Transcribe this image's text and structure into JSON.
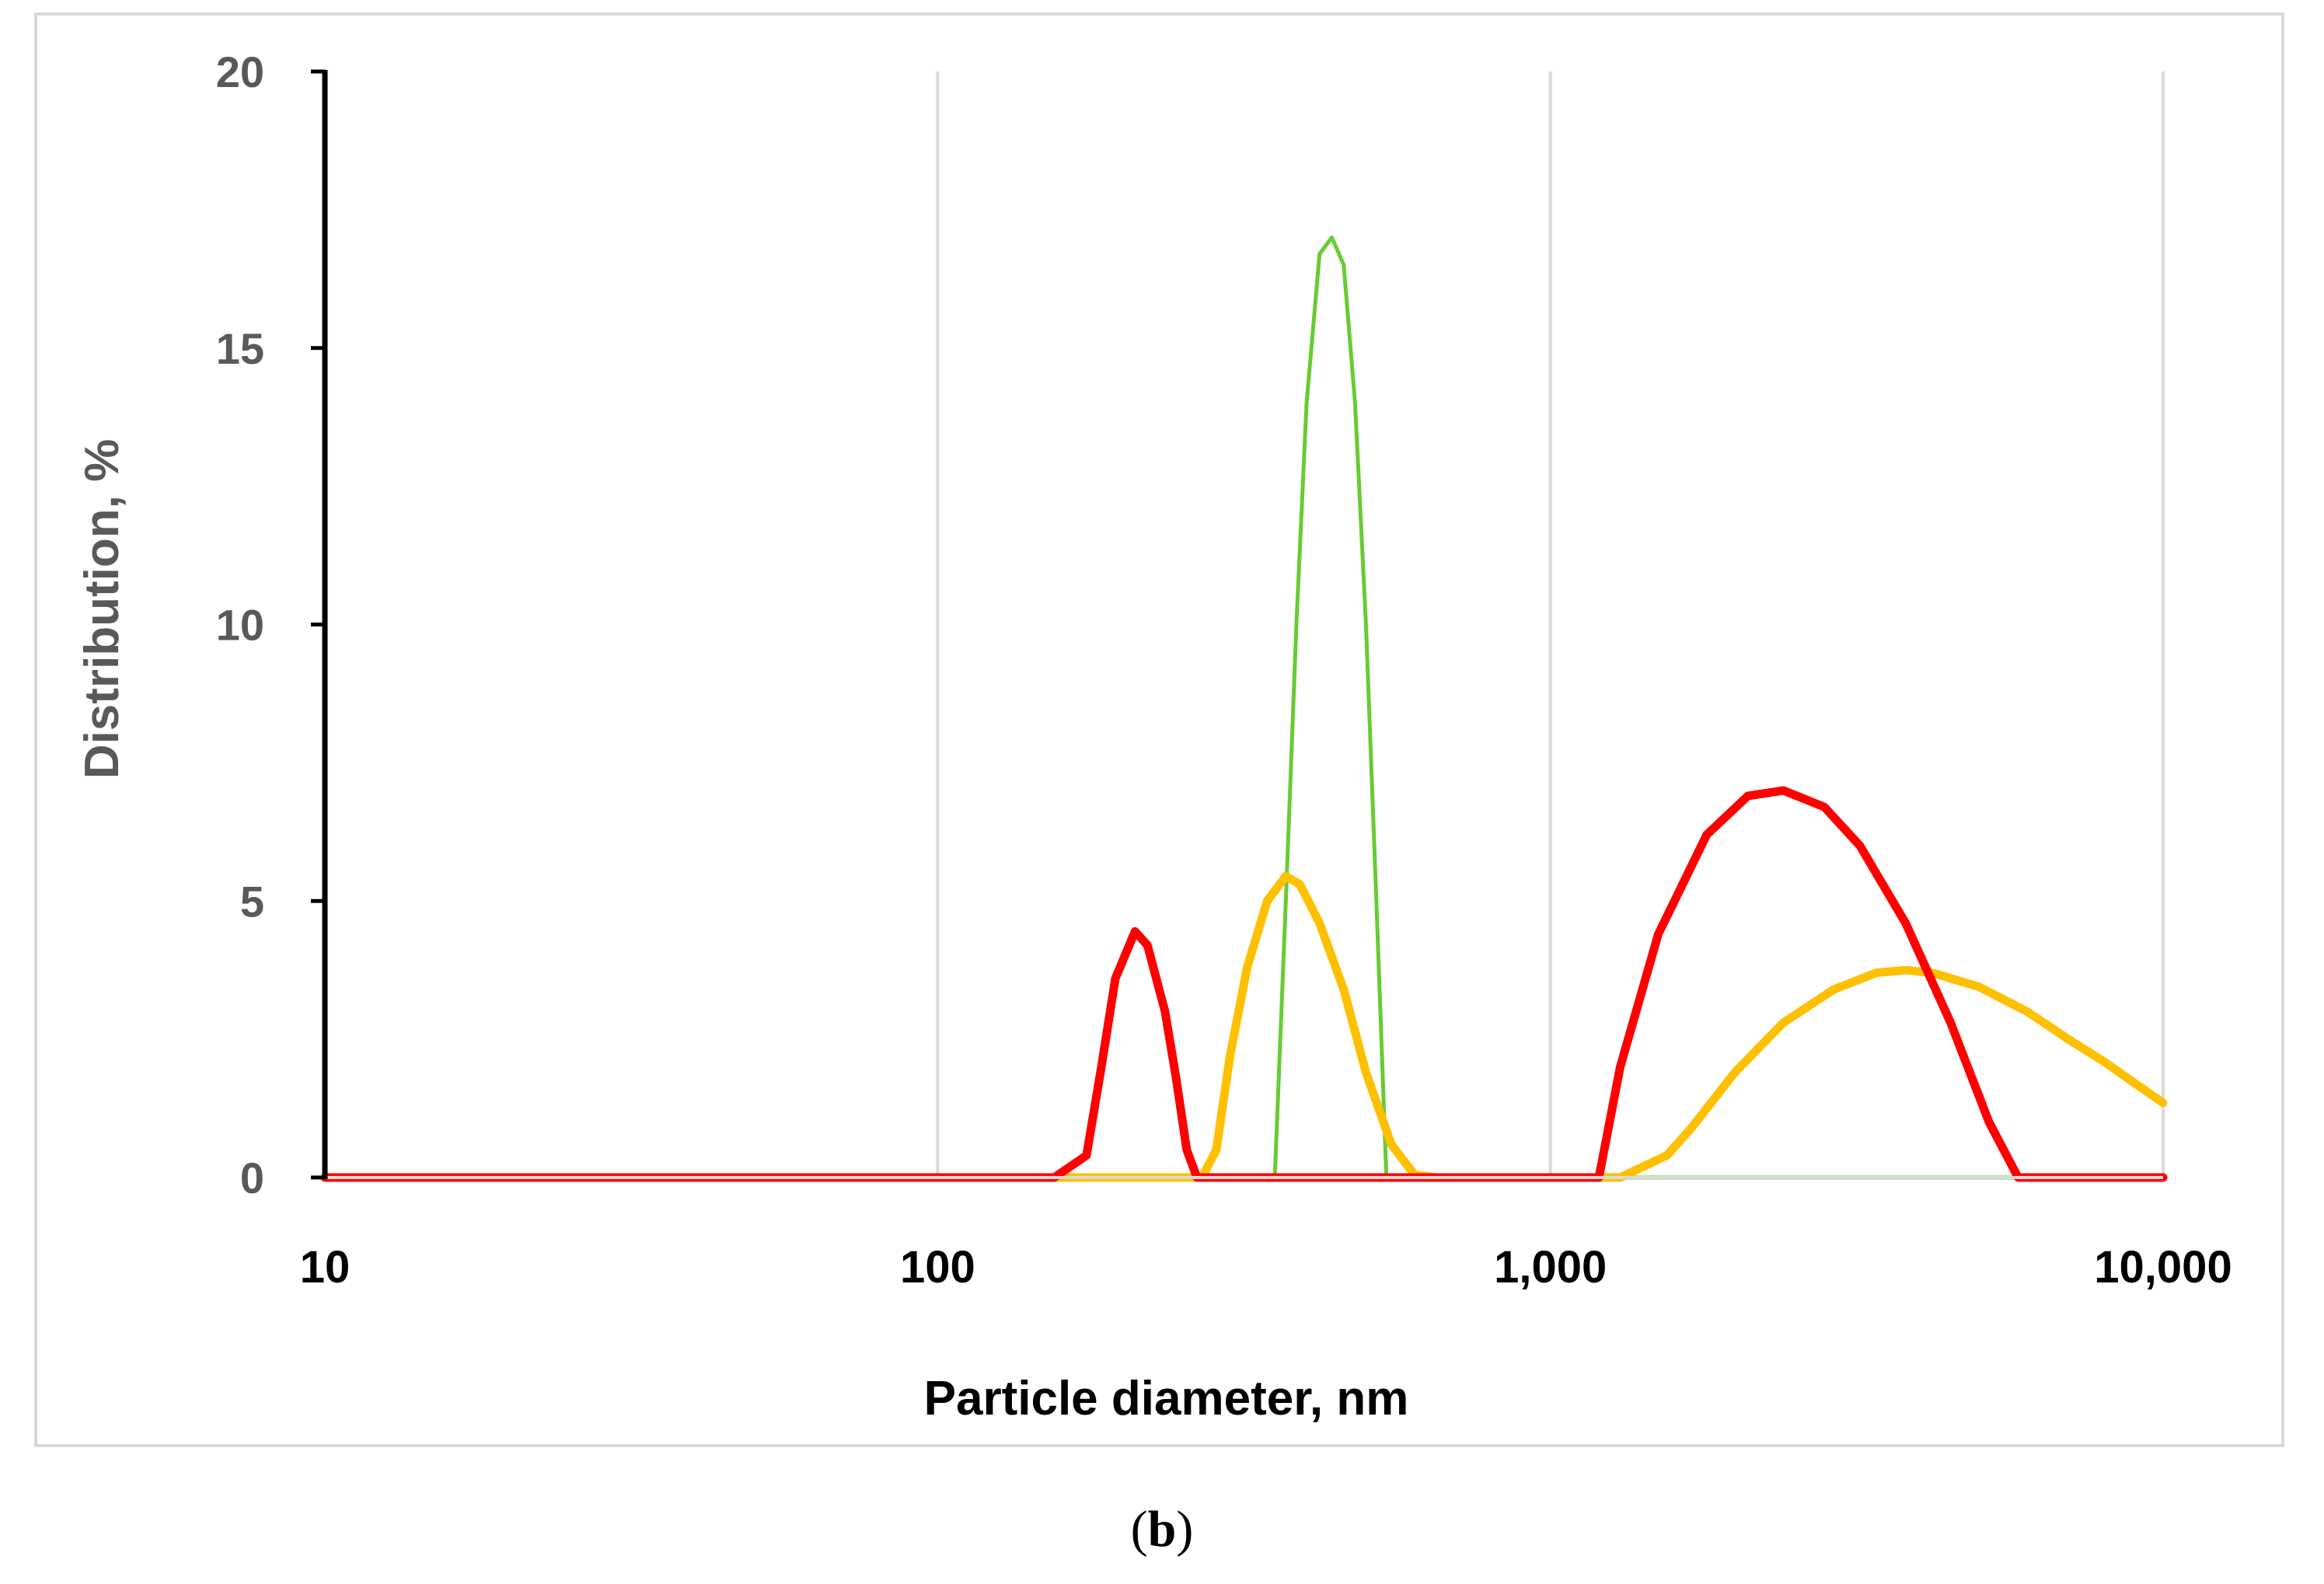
{
  "chart_data": {
    "type": "line",
    "xlabel": "Particle diameter, nm",
    "ylabel": "Distribution, %",
    "xscale": "log",
    "xlim": [
      10,
      10000
    ],
    "ylim": [
      0,
      20
    ],
    "x_ticks": [
      {
        "value": 10,
        "label": "10"
      },
      {
        "value": 100,
        "label": "100"
      },
      {
        "value": 1000,
        "label": "1,000"
      },
      {
        "value": 10000,
        "label": "10,000"
      }
    ],
    "y_ticks": [
      {
        "value": 0,
        "label": "0"
      },
      {
        "value": 5,
        "label": "5"
      },
      {
        "value": 10,
        "label": "10"
      },
      {
        "value": 15,
        "label": "15"
      },
      {
        "value": 20,
        "label": "20"
      }
    ],
    "grid": "vertical gridlines at major x ticks",
    "legend": "none",
    "series": [
      {
        "color": "#66cc33",
        "x": [
          10,
          300,
          355,
          370,
          385,
          400,
          420,
          440,
          460,
          480,
          500,
          520,
          540,
          560,
          10000
        ],
        "y": [
          0,
          0,
          0,
          5,
          10,
          14,
          16.7,
          17.0,
          16.5,
          14,
          10,
          5,
          0,
          0,
          0
        ]
      },
      {
        "color": "#ffc000",
        "x": [
          10,
          160,
          270,
          285,
          300,
          320,
          345,
          370,
          390,
          420,
          460,
          500,
          550,
          600,
          650,
          700,
          1000,
          1300,
          1550,
          1700,
          2000,
          2400,
          2900,
          3400,
          3800,
          4200,
          5000,
          6000,
          7000,
          8000,
          9000,
          10000
        ],
        "y": [
          0,
          0,
          0,
          0.5,
          2.2,
          3.8,
          5.0,
          5.45,
          5.3,
          4.6,
          3.4,
          1.9,
          0.6,
          0.05,
          0,
          0,
          0,
          0,
          0.4,
          0.9,
          1.9,
          2.8,
          3.4,
          3.7,
          3.75,
          3.7,
          3.45,
          3.0,
          2.5,
          2.1,
          1.7,
          1.35
        ]
      },
      {
        "color": "#ff0000",
        "x": [
          10,
          155,
          175,
          185,
          195,
          210,
          220,
          235,
          245,
          255,
          265,
          1000,
          1200,
          1300,
          1500,
          1800,
          2100,
          2400,
          2800,
          3200,
          3800,
          4500,
          5200,
          5800,
          6500,
          10000
        ],
        "y": [
          0,
          0,
          0.4,
          2.0,
          3.6,
          4.45,
          4.2,
          3.0,
          1.8,
          0.5,
          0,
          0,
          0,
          2.0,
          4.4,
          6.2,
          6.9,
          7.0,
          6.7,
          6.0,
          4.6,
          2.8,
          1.0,
          0,
          0,
          0
        ]
      }
    ]
  },
  "panel_label": "b"
}
